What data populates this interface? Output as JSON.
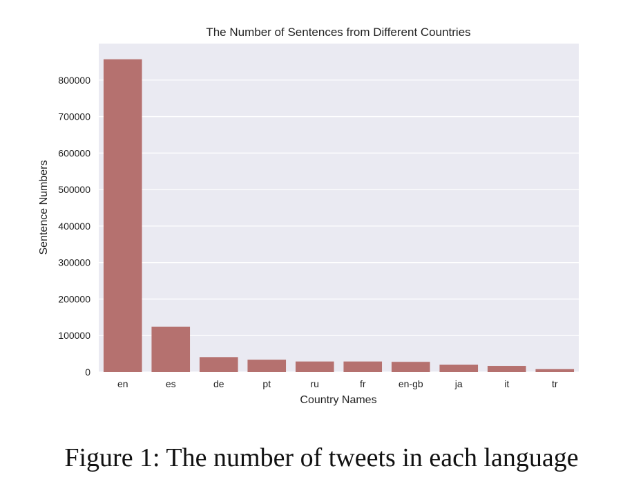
{
  "chart_data": {
    "type": "bar",
    "title": "The Number of Sentences from Different Countries",
    "xlabel": "Country Names",
    "ylabel": "Sentence Numbers",
    "categories": [
      "en",
      "es",
      "de",
      "pt",
      "ru",
      "fr",
      "en-gb",
      "ja",
      "it",
      "tr"
    ],
    "values": [
      857000,
      124000,
      41000,
      34000,
      29000,
      29000,
      28000,
      20000,
      17000,
      8000
    ],
    "ylim": [
      0,
      900000
    ],
    "yticks": [
      0,
      100000,
      200000,
      300000,
      400000,
      500000,
      600000,
      700000,
      800000
    ],
    "ytick_labels": [
      "0",
      "100000",
      "200000",
      "300000",
      "400000",
      "500000",
      "600000",
      "700000",
      "800000"
    ],
    "grid": true,
    "bar_color": "#b5716f",
    "background_color": "#eaeaf2"
  },
  "caption": "Figure 1: The number of tweets in each language"
}
